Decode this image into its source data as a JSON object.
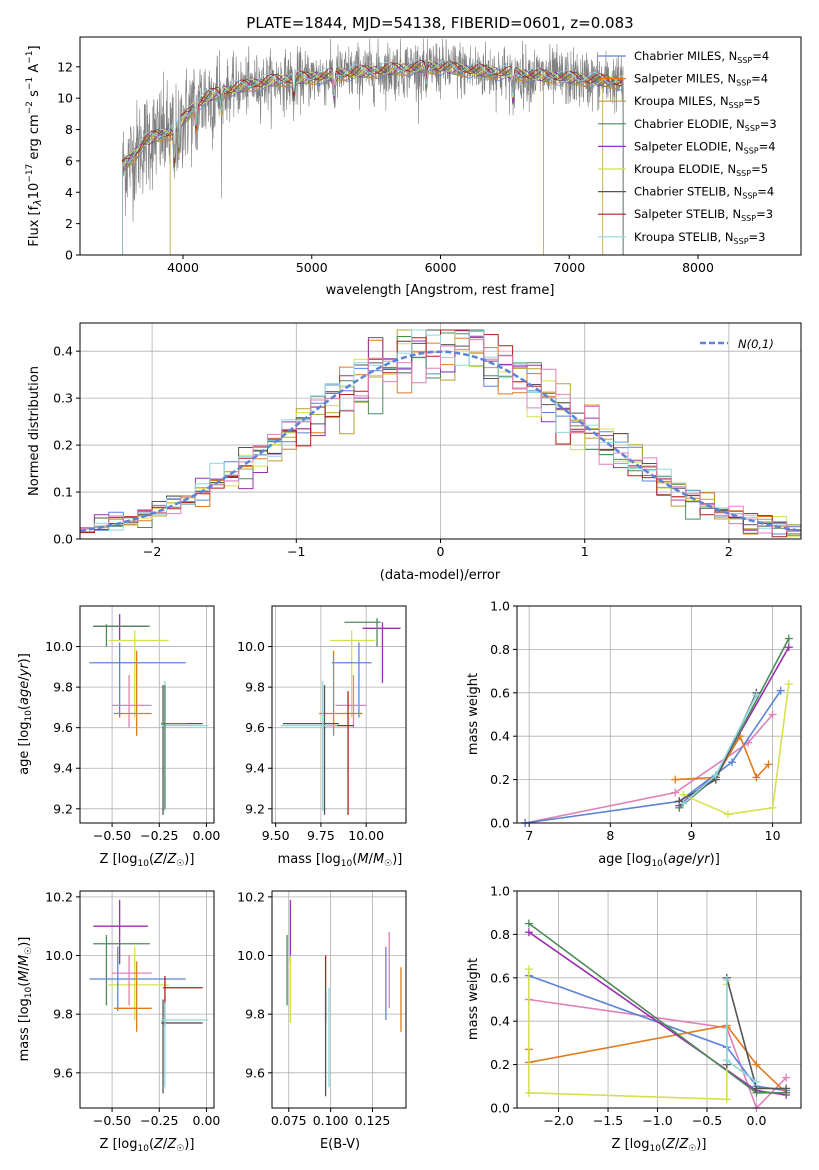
{
  "title": "PLATE=1844, MJD=54138, FIBERID=0601, z=0.083",
  "colors": {
    "chabrier_miles": "#5b84d8",
    "salpeter_miles": "#e07a1f",
    "kroupa_miles": "#b8a030",
    "chabrier_elodie": "#4e8a5a",
    "salpeter_elodie": "#9b30b0",
    "kroupa_elodie": "#d4e050",
    "chabrier_stelib": "#555555",
    "salpeter_stelib": "#b01e1e",
    "kroupa_stelib": "#8ed8e0",
    "pink": "#e080b8",
    "gaussian": "#5b84d8"
  },
  "chart_data": [
    {
      "id": "spectrum",
      "type": "line",
      "xlabel": "wavelength [Angstrom, rest frame]",
      "ylabel": "Flux [f_λ 10^-17 erg cm^-2 s^-1 A^-1]",
      "xlim": [
        3200,
        8800
      ],
      "ylim": [
        0,
        13.9
      ],
      "xticks": [
        4000,
        5000,
        6000,
        7000,
        8000
      ],
      "yticks": [
        0,
        2,
        4,
        6,
        8,
        10,
        12
      ],
      "grid": false,
      "legend_position": "right",
      "x_range": [
        3530,
        7420
      ],
      "continuum": {
        "x": [
          3530,
          3600,
          3700,
          3800,
          3900,
          4000,
          4100,
          4200,
          4300,
          4500,
          4700,
          5000,
          5300,
          5600,
          5900,
          6200,
          6500,
          6800,
          7100,
          7400
        ],
        "y": [
          5.6,
          6.2,
          7.2,
          7.6,
          7.8,
          8.6,
          9.6,
          10.1,
          10.4,
          10.8,
          11.1,
          11.3,
          11.6,
          11.8,
          12.0,
          11.8,
          11.6,
          11.4,
          11.2,
          11.0
        ]
      },
      "series": [
        {
          "name": "Chabrier MILES",
          "nssp": "4",
          "color_key": "chabrier_miles"
        },
        {
          "name": "Salpeter MILES",
          "nssp": "4",
          "color_key": "salpeter_miles"
        },
        {
          "name": "Kroupa MILES",
          "nssp": "5",
          "color_key": "kroupa_miles"
        },
        {
          "name": "Chabrier ELODIE",
          "nssp": "3",
          "color_key": "chabrier_elodie"
        },
        {
          "name": "Salpeter ELODIE",
          "nssp": "4",
          "color_key": "salpeter_elodie"
        },
        {
          "name": "Kroupa ELODIE",
          "nssp": "5",
          "color_key": "kroupa_elodie"
        },
        {
          "name": "Chabrier STELIB",
          "nssp": "4",
          "color_key": "chabrier_stelib"
        },
        {
          "name": "Salpeter STELIB",
          "nssp": "3",
          "color_key": "salpeter_stelib"
        },
        {
          "name": "Kroupa STELIB",
          "nssp": "3",
          "color_key": "kroupa_stelib"
        }
      ]
    },
    {
      "id": "residuals",
      "type": "line",
      "xlabel": "(data-model)/error",
      "ylabel": "Normed distribution",
      "xlim": [
        -2.5,
        2.5
      ],
      "ylim": [
        0,
        0.46
      ],
      "xticks": [
        -2,
        -1,
        0,
        1,
        2
      ],
      "yticks": [
        0.0,
        0.1,
        0.2,
        0.3,
        0.4
      ],
      "grid": true,
      "legend_position": "top-right",
      "legend": "N(0,1)",
      "bin_width": 0.1
    },
    {
      "id": "age_vs_Z",
      "type": "scatter",
      "xlabel": "Z [log10(Z/Z☉)]",
      "ylabel": "age [log10(age/yr)]",
      "xlim": [
        -0.67,
        0.04
      ],
      "ylim": [
        9.13,
        10.2
      ],
      "xticks": [
        -0.5,
        -0.25,
        0.0
      ],
      "yticks": [
        9.2,
        9.4,
        9.6,
        9.8,
        10.0
      ],
      "grid": true,
      "points": [
        {
          "c": "salpeter_elodie",
          "x": -0.46,
          "xe": [
            -0.6,
            -0.31
          ],
          "y": 10.1,
          "ye": [
            10.03,
            10.16
          ]
        },
        {
          "c": "chabrier_elodie",
          "x": -0.53,
          "xe": [
            -0.6,
            -0.3
          ],
          "y": 10.1,
          "ye": [
            10.0,
            10.11
          ]
        },
        {
          "c": "kroupa_elodie",
          "x": -0.38,
          "xe": [
            -0.52,
            -0.2
          ],
          "y": 10.03,
          "ye": [
            9.65,
            10.08
          ]
        },
        {
          "c": "chabrier_miles",
          "x": -0.46,
          "xe": [
            -0.62,
            -0.11
          ],
          "y": 9.92,
          "ye": [
            9.65,
            10.02
          ]
        },
        {
          "c": "pink",
          "x": -0.41,
          "xe": [
            -0.5,
            -0.29
          ],
          "y": 9.71,
          "ye": [
            9.6,
            9.86
          ]
        },
        {
          "c": "salpeter_miles",
          "x": -0.37,
          "xe": [
            -0.49,
            -0.29
          ],
          "y": 9.67,
          "ye": [
            9.56,
            9.98
          ]
        },
        {
          "c": "chabrier_stelib",
          "x": -0.23,
          "xe": [
            -0.24,
            -0.02
          ],
          "y": 9.62,
          "ye": [
            9.17,
            9.81
          ]
        },
        {
          "c": "kroupa_stelib",
          "x": -0.22,
          "xe": [
            -0.24,
            0.01
          ],
          "y": 9.61,
          "ye": [
            9.19,
            9.83
          ]
        },
        {
          "c": "chabrier_elodie",
          "x": -0.22,
          "xe": [
            -0.24,
            -0.1
          ],
          "y": 9.62,
          "ye": [
            9.2,
            9.81
          ]
        }
      ]
    },
    {
      "id": "age_vs_mass",
      "type": "scatter",
      "xlabel": "mass [log10(M/M☉)]",
      "ylabel": "",
      "xlim": [
        9.48,
        10.22
      ],
      "ylim": [
        9.13,
        10.2
      ],
      "xticks": [
        9.5,
        9.75,
        10.0
      ],
      "yticks": [
        9.2,
        9.4,
        9.6,
        9.8,
        10.0
      ],
      "grid": true,
      "points": [
        {
          "c": "salpeter_elodie",
          "x": 10.09,
          "xe": [
            9.98,
            10.19
          ],
          "y": 10.09,
          "ye": [
            9.82,
            10.12
          ]
        },
        {
          "c": "chabrier_elodie",
          "x": 10.06,
          "xe": [
            9.88,
            10.08
          ],
          "y": 10.12,
          "ye": [
            10.0,
            10.14
          ]
        },
        {
          "c": "kroupa_elodie",
          "x": 9.92,
          "xe": [
            9.8,
            10.05
          ],
          "y": 10.03,
          "ye": [
            9.65,
            10.08
          ]
        },
        {
          "c": "chabrier_miles",
          "x": 9.96,
          "xe": [
            9.81,
            10.03
          ],
          "y": 9.92,
          "ye": [
            9.65,
            10.02
          ]
        },
        {
          "c": "pink",
          "x": 9.93,
          "xe": [
            9.83,
            10.0
          ],
          "y": 9.71,
          "ye": [
            9.6,
            9.86
          ]
        },
        {
          "c": "salpeter_miles",
          "x": 9.82,
          "xe": [
            9.74,
            9.98
          ],
          "y": 9.67,
          "ye": [
            9.56,
            9.98
          ]
        },
        {
          "c": "salpeter_stelib",
          "x": 9.9,
          "xe": [
            9.76,
            9.93
          ],
          "y": 9.61,
          "ye": [
            9.17,
            9.78
          ]
        },
        {
          "c": "chabrier_stelib",
          "x": 9.77,
          "xe": [
            9.54,
            9.85
          ],
          "y": 9.62,
          "ye": [
            9.17,
            9.81
          ]
        },
        {
          "c": "kroupa_stelib",
          "x": 9.76,
          "xe": [
            9.53,
            9.84
          ],
          "y": 9.61,
          "ye": [
            9.19,
            9.83
          ]
        }
      ]
    },
    {
      "id": "mw_vs_age",
      "type": "line",
      "xlabel": "age [log10(age/yr)]",
      "ylabel": "mass weight",
      "xlim": [
        6.85,
        10.35
      ],
      "ylim": [
        0,
        1
      ],
      "xticks": [
        7,
        8,
        9,
        10
      ],
      "yticks": [
        0.0,
        0.2,
        0.4,
        0.6,
        0.8,
        1.0
      ],
      "grid": true,
      "series": [
        {
          "c": "pink",
          "x": [
            6.95,
            8.8,
            9.7,
            10.0
          ],
          "y": [
            0.0,
            0.14,
            0.37,
            0.5
          ]
        },
        {
          "c": "chabrier_miles",
          "x": [
            6.95,
            8.85,
            9.5,
            10.1
          ],
          "y": [
            0.0,
            0.1,
            0.28,
            0.61
          ]
        },
        {
          "c": "salpeter_miles",
          "x": [
            8.8,
            9.3,
            9.6,
            9.8,
            9.95
          ],
          "y": [
            0.2,
            0.21,
            0.4,
            0.21,
            0.27
          ]
        },
        {
          "c": "salpeter_elodie",
          "x": [
            8.85,
            9.3,
            10.2
          ],
          "y": [
            0.08,
            0.22,
            0.81
          ]
        },
        {
          "c": "chabrier_elodie",
          "x": [
            8.85,
            9.3,
            10.2
          ],
          "y": [
            0.07,
            0.21,
            0.85
          ]
        },
        {
          "c": "kroupa_elodie",
          "x": [
            8.9,
            9.45,
            10.0,
            10.2
          ],
          "y": [
            0.13,
            0.04,
            0.07,
            0.64
          ]
        },
        {
          "c": "chabrier_stelib",
          "x": [
            8.85,
            9.3,
            9.8
          ],
          "y": [
            0.1,
            0.2,
            0.6
          ]
        },
        {
          "c": "kroupa_stelib",
          "x": [
            8.9,
            9.3,
            9.8
          ],
          "y": [
            0.09,
            0.22,
            0.59
          ]
        }
      ]
    },
    {
      "id": "mass_vs_Z",
      "type": "scatter",
      "xlabel": "Z [log10(Z/Z☉)]",
      "ylabel": "mass [log10(M/M☉)]",
      "xlim": [
        -0.67,
        0.04
      ],
      "ylim": [
        9.48,
        10.22
      ],
      "xticks": [
        -0.5,
        -0.25,
        0.0
      ],
      "yticks": [
        9.6,
        9.8,
        10.0,
        10.2
      ],
      "grid": true,
      "points": [
        {
          "c": "salpeter_elodie",
          "x": -0.46,
          "xe": [
            -0.6,
            -0.31
          ],
          "y": 10.1,
          "ye": [
            9.97,
            10.19
          ]
        },
        {
          "c": "chabrier_elodie",
          "x": -0.53,
          "xe": [
            -0.6,
            -0.3
          ],
          "y": 10.04,
          "ye": [
            9.83,
            10.07
          ]
        },
        {
          "c": "kroupa_elodie",
          "x": -0.38,
          "xe": [
            -0.52,
            -0.2
          ],
          "y": 9.9,
          "ye": [
            9.78,
            10.03
          ]
        },
        {
          "c": "chabrier_miles",
          "x": -0.47,
          "xe": [
            -0.62,
            -0.11
          ],
          "y": 9.92,
          "ye": [
            9.81,
            10.03
          ]
        },
        {
          "c": "pink",
          "x": -0.41,
          "xe": [
            -0.5,
            -0.29
          ],
          "y": 9.94,
          "ye": [
            9.83,
            10.0
          ]
        },
        {
          "c": "salpeter_miles",
          "x": -0.37,
          "xe": [
            -0.49,
            -0.29
          ],
          "y": 9.82,
          "ye": [
            9.74,
            9.98
          ]
        },
        {
          "c": "salpeter_stelib",
          "x": -0.22,
          "xe": [
            -0.23,
            -0.02
          ],
          "y": 9.89,
          "ye": [
            9.76,
            9.93
          ]
        },
        {
          "c": "chabrier_stelib",
          "x": -0.23,
          "xe": [
            -0.24,
            -0.02
          ],
          "y": 9.77,
          "ye": [
            9.53,
            9.85
          ]
        },
        {
          "c": "kroupa_stelib",
          "x": -0.22,
          "xe": [
            -0.24,
            0.01
          ],
          "y": 9.78,
          "ye": [
            9.55,
            9.84
          ]
        }
      ]
    },
    {
      "id": "mass_vs_ebv",
      "type": "scatter",
      "xlabel": "E(B-V)",
      "ylabel": "",
      "xlim": [
        0.065,
        0.145
      ],
      "ylim": [
        9.48,
        10.22
      ],
      "xticks": [
        0.075,
        0.1,
        0.125
      ],
      "yticks": [
        9.6,
        9.8,
        10.0,
        10.2
      ],
      "grid": true,
      "points": [
        {
          "c": "chabrier_elodie",
          "x": 0.074,
          "y": 9.95,
          "ye": [
            9.83,
            10.07
          ]
        },
        {
          "c": "salpeter_elodie",
          "x": 0.076,
          "y": 10.1,
          "ye": [
            9.98,
            10.19
          ]
        },
        {
          "c": "kroupa_elodie",
          "x": 0.076,
          "y": 9.9,
          "ye": [
            9.77,
            10.0
          ]
        },
        {
          "c": "salpeter_stelib",
          "x": 0.097,
          "y": 9.89,
          "ye": [
            9.77,
            10.0
          ]
        },
        {
          "c": "chabrier_stelib",
          "x": 0.097,
          "y": 9.7,
          "ye": [
            9.52,
            9.88
          ]
        },
        {
          "c": "kroupa_stelib",
          "x": 0.099,
          "y": 9.72,
          "ye": [
            9.55,
            9.89
          ]
        },
        {
          "c": "chabrier_miles",
          "x": 0.133,
          "y": 9.9,
          "ye": [
            9.78,
            10.03
          ]
        },
        {
          "c": "pink",
          "x": 0.135,
          "y": 9.95,
          "ye": [
            9.82,
            10.08
          ]
        },
        {
          "c": "salpeter_miles",
          "x": 0.142,
          "y": 9.85,
          "ye": [
            9.74,
            9.96
          ]
        }
      ]
    },
    {
      "id": "mw_vs_Z",
      "type": "line",
      "xlabel": "Z [log10(Z/Z☉)]",
      "ylabel": "mass weight",
      "xlim": [
        -2.42,
        0.45
      ],
      "ylim": [
        0,
        1
      ],
      "xticks": [
        -2.0,
        -1.5,
        -1.0,
        -0.5,
        0.0
      ],
      "yticks": [
        0.0,
        0.2,
        0.4,
        0.6,
        0.8,
        1.0
      ],
      "grid": true,
      "series": [
        {
          "c": "pink",
          "x": [
            -2.3,
            -0.3,
            0.0,
            0.3
          ],
          "y": [
            0.5,
            0.37,
            0.0,
            0.14
          ]
        },
        {
          "c": "chabrier_miles",
          "x": [
            -2.3,
            -0.3,
            0.0,
            0.3
          ],
          "y": [
            0.61,
            0.28,
            0.1,
            0.08
          ]
        },
        {
          "c": "salpeter_miles",
          "x": [
            -2.3,
            -2.3,
            -0.3,
            0.0,
            0.3
          ],
          "y": [
            0.27,
            0.21,
            0.38,
            0.2,
            0.07
          ]
        },
        {
          "c": "salpeter_elodie",
          "x": [
            -2.3,
            0.0,
            0.3
          ],
          "y": [
            0.81,
            0.08,
            0.06
          ]
        },
        {
          "c": "chabrier_elodie",
          "x": [
            -2.3,
            0.0,
            0.3
          ],
          "y": [
            0.85,
            0.07,
            0.07
          ]
        },
        {
          "c": "kroupa_elodie",
          "x": [
            -2.3,
            -2.3,
            -0.3,
            -0.3
          ],
          "y": [
            0.64,
            0.07,
            0.04,
            0.57
          ]
        },
        {
          "c": "chabrier_stelib",
          "x": [
            -0.3,
            -0.3,
            0.0,
            0.3
          ],
          "y": [
            0.2,
            0.6,
            0.09,
            0.09
          ]
        },
        {
          "c": "kroupa_stelib",
          "x": [
            -0.3,
            -0.3,
            0.0
          ],
          "y": [
            0.59,
            0.22,
            0.12
          ]
        }
      ]
    }
  ]
}
